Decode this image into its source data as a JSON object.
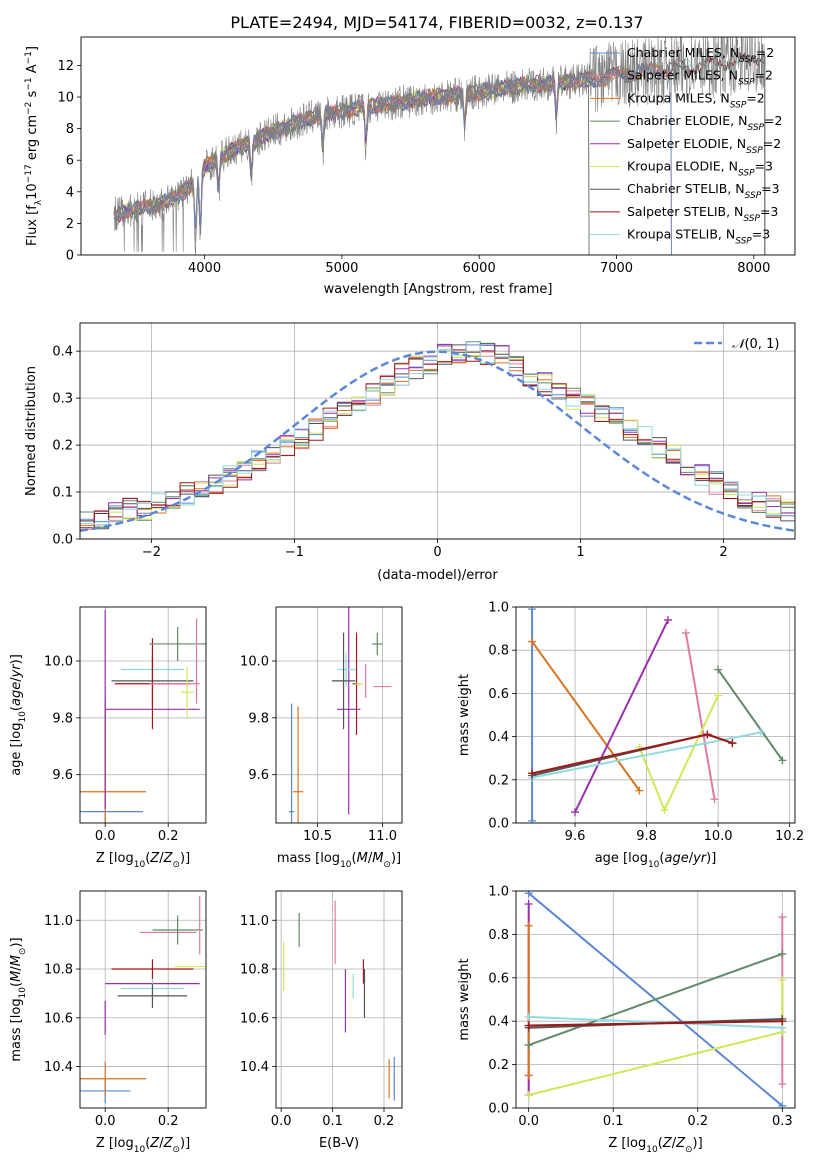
{
  "figure": {
    "title": "PLATE=2494, MJD=54174, FIBERID=0032, z=0.137"
  },
  "colors": {
    "Chabrier MILES": "#5b87d6",
    "Salpeter MILES": "#e07a9f",
    "Kroupa MILES": "#d9731e",
    "Chabrier ELODIE": "#5f8a65",
    "Salpeter ELODIE": "#9b2fae",
    "Kroupa ELODIE": "#cfe85a",
    "Chabrier STELIB": "#555555",
    "Salpeter STELIB": "#a01717",
    "Kroupa STELIB": "#8fdbe0",
    "data": "#808080",
    "normal": "#5b87d6"
  },
  "chart_data": [
    {
      "id": "spectrum",
      "type": "line",
      "xlabel": "wavelength [Angstrom, rest frame]",
      "ylabel": "Flux [f_λ 10^-17 erg cm^-2 s^-1 A^-1]",
      "xlim": [
        3100,
        8300
      ],
      "ylim": [
        0,
        13.8
      ],
      "xticks": [
        4000,
        5000,
        6000,
        7000,
        8000
      ],
      "yticks": [
        0,
        2,
        4,
        6,
        8,
        10,
        12
      ],
      "legend_position": "upper-right",
      "legend": [
        {
          "name": "Chabrier MILES",
          "nssp": "2"
        },
        {
          "name": "Salpeter MILES",
          "nssp": "2"
        },
        {
          "name": "Kroupa MILES",
          "nssp": "2"
        },
        {
          "name": "Chabrier ELODIE",
          "nssp": "2"
        },
        {
          "name": "Salpeter ELODIE",
          "nssp": "2"
        },
        {
          "name": "Kroupa ELODIE",
          "nssp": "3"
        },
        {
          "name": "Chabrier STELIB",
          "nssp": "3"
        },
        {
          "name": "Salpeter STELIB",
          "nssp": "3"
        },
        {
          "name": "Kroupa STELIB",
          "nssp": "3"
        }
      ],
      "continuum": {
        "x": [
          3340,
          3500,
          3700,
          3800,
          3950,
          4000,
          4200,
          4500,
          4800,
          5200,
          5600,
          5900,
          6300,
          6700,
          7100,
          7500,
          7900,
          8080
        ],
        "y": [
          2.6,
          2.9,
          3.3,
          3.7,
          4.8,
          5.6,
          6.6,
          7.8,
          8.8,
          9.4,
          9.9,
          10.2,
          10.7,
          11.0,
          11.5,
          11.9,
          12.3,
          12.6
        ]
      },
      "spectrum_range": [
        3340,
        8080
      ],
      "model_ranges": {
        "Chabrier MILES": [
          3340,
          7400
        ],
        "Salpeter MILES": [
          3340,
          7400
        ],
        "Kroupa MILES": [
          3340,
          7400
        ],
        "Chabrier ELODIE": [
          3340,
          6800
        ],
        "Salpeter ELODIE": [
          3340,
          6800
        ],
        "Kroupa ELODIE": [
          3340,
          6800
        ],
        "Chabrier STELIB": [
          3340,
          8080
        ],
        "Salpeter STELIB": [
          3340,
          8080
        ],
        "Kroupa STELIB": [
          3340,
          8080
        ]
      },
      "absorption_lines": [
        3934,
        3969,
        4102,
        4340,
        4861,
        5175,
        5894,
        6563
      ],
      "note_tick_labels": [
        "4000",
        "5000",
        "6000",
        "7000",
        "8000"
      ]
    },
    {
      "id": "residuals",
      "type": "histogram",
      "xlabel": "(data-model)/error",
      "ylabel": "Normed distribution",
      "xlim": [
        -2.5,
        2.5
      ],
      "ylim": [
        0,
        0.46
      ],
      "xticks": [
        -2,
        -1,
        0,
        1,
        2
      ],
      "xtick_labels": [
        "−2",
        "−1",
        "0",
        "1",
        "2"
      ],
      "yticks": [
        0.0,
        0.1,
        0.2,
        0.3,
        0.4
      ],
      "ytick_labels": [
        "0.0",
        "0.1",
        "0.2",
        "0.3",
        "0.4"
      ],
      "bin_edges_start": -2.5,
      "bin_width": 0.1,
      "base_values": [
        0.04,
        0.045,
        0.055,
        0.065,
        0.065,
        0.075,
        0.085,
        0.095,
        0.105,
        0.12,
        0.135,
        0.15,
        0.165,
        0.18,
        0.2,
        0.215,
        0.235,
        0.255,
        0.275,
        0.295,
        0.31,
        0.33,
        0.35,
        0.365,
        0.375,
        0.39,
        0.395,
        0.4,
        0.395,
        0.39,
        0.37,
        0.35,
        0.33,
        0.315,
        0.3,
        0.285,
        0.27,
        0.255,
        0.235,
        0.215,
        0.195,
        0.175,
        0.155,
        0.135,
        0.12,
        0.105,
        0.09,
        0.08,
        0.07,
        0.06
      ],
      "legend": [
        {
          "name": "N(0,1)",
          "style": "dashed"
        }
      ],
      "legend_position": "upper-right"
    },
    {
      "id": "z_age",
      "type": "errorbar",
      "xlabel": "Z [log10(Z/Z⊙)]",
      "ylabel": "age [log10(age/yr)]",
      "xlim": [
        -0.08,
        0.32
      ],
      "ylim": [
        9.43,
        10.19
      ],
      "xticks": [
        0.0,
        0.2
      ],
      "xtick_labels": [
        "0.0",
        "0.2"
      ],
      "yticks": [
        9.6,
        9.8,
        10.0
      ],
      "yticks_labels": [
        "9.6",
        "9.8",
        "10.0"
      ],
      "points": [
        {
          "model": "Chabrier MILES",
          "x": 0.0,
          "xerr": 0.12,
          "y": 9.47,
          "yerr": 0.4
        },
        {
          "model": "Kroupa MILES",
          "x": 0.0,
          "xerr": 0.13,
          "y": 9.54,
          "yerr": 0.3
        },
        {
          "model": "Salpeter ELODIE",
          "x": 0.0,
          "xerr": 0.0,
          "y": 9.83,
          "yerr": 0.35
        },
        {
          "model": "Salpeter ELODIE",
          "x": 0.15,
          "xerr": 0.15,
          "y": 9.83,
          "yerr": 0.0
        },
        {
          "model": "Kroupa STELIB",
          "x": 0.15,
          "xerr": 0.1,
          "y": 9.97,
          "yerr": 0.04
        },
        {
          "model": "Chabrier STELIB",
          "x": 0.15,
          "xerr": 0.13,
          "y": 9.93,
          "yerr": 0.09
        },
        {
          "model": "Salpeter STELIB",
          "x": 0.15,
          "xerr": 0.12,
          "y": 9.92,
          "yerr": 0.16
        },
        {
          "model": "Salpeter MILES",
          "x": 0.22,
          "xerr": 0.08,
          "y": 9.92,
          "yerr": 0.0
        },
        {
          "model": "Kroupa ELODIE",
          "x": 0.26,
          "xerr": 0.02,
          "y": 9.89,
          "yerr": 0.09
        },
        {
          "model": "Chabrier ELODIE",
          "x": 0.23,
          "xerr": 0.09,
          "y": 10.06,
          "yerr": 0.06
        },
        {
          "model": "Salpeter MILES",
          "x": 0.29,
          "xerr": 0.0,
          "y": 10.0,
          "yerr": 0.15
        }
      ]
    },
    {
      "id": "mass_age",
      "type": "errorbar",
      "xlabel": "mass [log10(M/M⊙)]",
      "ylabel": "",
      "xlim": [
        10.18,
        11.15
      ],
      "ylim": [
        9.43,
        10.19
      ],
      "xticks": [
        10.5,
        11.0
      ],
      "xtick_labels": [
        "10.5",
        "11.0"
      ],
      "yticks": [
        9.6,
        9.8,
        10.0
      ],
      "ytick_labels": [
        "9.6",
        "9.8",
        "10.0"
      ],
      "points": [
        {
          "model": "Chabrier MILES",
          "x": 10.3,
          "xerr": 0.02,
          "y": 9.47,
          "yerr": 0.38
        },
        {
          "model": "Kroupa MILES",
          "x": 10.35,
          "xerr": 0.04,
          "y": 9.54,
          "yerr": 0.3
        },
        {
          "model": "Salpeter ELODIE",
          "x": 10.74,
          "xerr": 0.09,
          "y": 9.83,
          "yerr": 0.37
        },
        {
          "model": "Kroupa STELIB",
          "x": 10.72,
          "xerr": 0.07,
          "y": 9.97,
          "yerr": 0.06
        },
        {
          "model": "Chabrier STELIB",
          "x": 10.7,
          "xerr": 0.09,
          "y": 9.93,
          "yerr": 0.17
        },
        {
          "model": "Salpeter STELIB",
          "x": 10.8,
          "xerr": 0.03,
          "y": 9.92,
          "yerr": 0.18
        },
        {
          "model": "Kroupa ELODIE",
          "x": 10.82,
          "xerr": 0.03,
          "y": 9.92,
          "yerr": 0.0
        },
        {
          "model": "Chabrier ELODIE",
          "x": 10.96,
          "xerr": 0.04,
          "y": 10.06,
          "yerr": 0.04
        },
        {
          "model": "Salpeter MILES",
          "x": 11.0,
          "xerr": 0.07,
          "y": 9.91,
          "yerr": 0.0
        },
        {
          "model": "Salpeter MILES",
          "x": 10.87,
          "xerr": 0.0,
          "y": 9.93,
          "yerr": 0.06
        }
      ]
    },
    {
      "id": "age_weight",
      "type": "line",
      "xlabel": "age [log10(age/yr)]",
      "ylabel": "mass weight",
      "xlim": [
        9.435,
        10.215
      ],
      "ylim": [
        0,
        1.0
      ],
      "xticks": [
        9.6,
        9.8,
        10.0,
        10.2
      ],
      "xtick_labels": [
        "9.6",
        "9.8",
        "10.0",
        "10.2"
      ],
      "yticks": [
        0.0,
        0.2,
        0.4,
        0.6,
        0.8,
        1.0
      ],
      "ytick_labels": [
        "0.0",
        "0.2",
        "0.4",
        "0.6",
        "0.8",
        "1.0"
      ],
      "series": [
        {
          "model": "Chabrier MILES",
          "x": [
            9.48,
            9.48
          ],
          "y": [
            0.01,
            0.99
          ]
        },
        {
          "model": "Kroupa MILES",
          "x": [
            9.48,
            9.78
          ],
          "y": [
            0.84,
            0.15
          ]
        },
        {
          "model": "Salpeter ELODIE",
          "x": [
            9.6,
            9.86
          ],
          "y": [
            0.05,
            0.94
          ]
        },
        {
          "model": "Salpeter MILES",
          "x": [
            9.91,
            9.99
          ],
          "y": [
            0.88,
            0.11
          ]
        },
        {
          "model": "Kroupa ELODIE",
          "x": [
            9.78,
            9.85,
            10.0
          ],
          "y": [
            0.35,
            0.06,
            0.59
          ]
        },
        {
          "model": "Chabrier ELODIE",
          "x": [
            10.0,
            10.18
          ],
          "y": [
            0.71,
            0.29
          ]
        },
        {
          "model": "Kroupa STELIB",
          "x": [
            9.48,
            10.12
          ],
          "y": [
            0.21,
            0.42
          ]
        },
        {
          "model": "Chabrier STELIB",
          "x": [
            9.48,
            9.97,
            10.04
          ],
          "y": [
            0.22,
            0.41,
            0.37
          ]
        },
        {
          "model": "Salpeter STELIB",
          "x": [
            9.48,
            9.97,
            10.04
          ],
          "y": [
            0.23,
            0.41,
            0.37
          ]
        }
      ]
    },
    {
      "id": "z_mass",
      "type": "errorbar",
      "xlabel": "Z [log10(Z/Z⊙)]",
      "ylabel": "mass [log10(M/M⊙)]",
      "xlim": [
        -0.08,
        0.32
      ],
      "ylim": [
        10.23,
        11.12
      ],
      "xticks": [
        0.0,
        0.2
      ],
      "xtick_labels": [
        "0.0",
        "0.2"
      ],
      "yticks": [
        10.4,
        10.6,
        10.8,
        11.0
      ],
      "ytick_labels": [
        "10.4",
        "10.6",
        "10.8",
        "11.0"
      ],
      "points": [
        {
          "model": "Chabrier MILES",
          "x": 0.0,
          "xerr": 0.08,
          "y": 10.3,
          "yerr": 0.05
        },
        {
          "model": "Kroupa MILES",
          "x": 0.0,
          "xerr": 0.13,
          "y": 10.35,
          "yerr": 0.07
        },
        {
          "model": "Salpeter ELODIE",
          "x": 0.0,
          "xerr": 0.0,
          "y": 10.6,
          "yerr": 0.07
        },
        {
          "model": "Salpeter ELODIE",
          "x": 0.15,
          "xerr": 0.15,
          "y": 10.74,
          "yerr": 0.0
        },
        {
          "model": "Kroupa STELIB",
          "x": 0.15,
          "xerr": 0.1,
          "y": 10.72,
          "yerr": 0.04
        },
        {
          "model": "Chabrier STELIB",
          "x": 0.15,
          "xerr": 0.11,
          "y": 10.69,
          "yerr": 0.05
        },
        {
          "model": "Salpeter STELIB",
          "x": 0.15,
          "xerr": 0.13,
          "y": 10.8,
          "yerr": 0.04
        },
        {
          "model": "Kroupa ELODIE",
          "x": 0.27,
          "xerr": 0.05,
          "y": 10.81,
          "yerr": 0.0
        },
        {
          "model": "Salpeter MILES",
          "x": 0.2,
          "xerr": 0.09,
          "y": 10.95,
          "yerr": 0.0
        },
        {
          "model": "Chabrier ELODIE",
          "x": 0.23,
          "xerr": 0.08,
          "y": 10.96,
          "yerr": 0.06
        },
        {
          "model": "Salpeter MILES",
          "x": 0.3,
          "xerr": 0.0,
          "y": 10.98,
          "yerr": 0.12
        }
      ]
    },
    {
      "id": "ebv_mass",
      "type": "errorbar",
      "xlabel": "E(B-V)",
      "ylabel": "",
      "xlim": [
        -0.01,
        0.235
      ],
      "ylim": [
        10.23,
        11.12
      ],
      "xticks": [
        0.0,
        0.1,
        0.2
      ],
      "xtick_labels": [
        "0.0",
        "0.1",
        "0.2"
      ],
      "yticks": [
        10.4,
        10.6,
        10.8,
        11.0
      ],
      "ytick_labels": [
        "10.4",
        "10.6",
        "10.8",
        "11.0"
      ],
      "points": [
        {
          "model": "Kroupa ELODIE",
          "x": 0.005,
          "xerr": 0.0,
          "y": 10.81,
          "yerr": 0.1
        },
        {
          "model": "Chabrier ELODIE",
          "x": 0.035,
          "xerr": 0.0,
          "y": 10.96,
          "yerr": 0.07
        },
        {
          "model": "Salpeter MILES",
          "x": 0.105,
          "xerr": 0.0,
          "y": 10.95,
          "yerr": 0.13
        },
        {
          "model": "Salpeter ELODIE",
          "x": 0.125,
          "xerr": 0.0,
          "y": 10.67,
          "yerr": 0.13
        },
        {
          "model": "Kroupa STELIB",
          "x": 0.14,
          "xerr": 0.0,
          "y": 10.73,
          "yerr": 0.05
        },
        {
          "model": "Salpeter STELIB",
          "x": 0.16,
          "xerr": 0.0,
          "y": 10.79,
          "yerr": 0.05
        },
        {
          "model": "Chabrier STELIB",
          "x": 0.162,
          "xerr": 0.0,
          "y": 10.7,
          "yerr": 0.1
        },
        {
          "model": "Kroupa MILES",
          "x": 0.21,
          "xerr": 0.0,
          "y": 10.35,
          "yerr": 0.08
        },
        {
          "model": "Chabrier MILES",
          "x": 0.22,
          "xerr": 0.0,
          "y": 10.35,
          "yerr": 0.09
        }
      ]
    },
    {
      "id": "z_weight",
      "type": "line",
      "xlabel": "Z [log10(Z/Z⊙)]",
      "ylabel": "mass weight",
      "xlim": [
        -0.015,
        0.315
      ],
      "ylim": [
        0,
        1.0
      ],
      "xticks": [
        0.0,
        0.1,
        0.2,
        0.3
      ],
      "xtick_labels": [
        "0.0",
        "0.1",
        "0.2",
        "0.3"
      ],
      "yticks": [
        0.0,
        0.2,
        0.4,
        0.6,
        0.8,
        1.0
      ],
      "ytick_labels": [
        "0.0",
        "0.2",
        "0.4",
        "0.6",
        "0.8",
        "1.0"
      ],
      "series": [
        {
          "model": "Chabrier MILES",
          "x": [
            0.0,
            0.3
          ],
          "y": [
            0.99,
            0.01
          ]
        },
        {
          "model": "Salpeter ELODIE",
          "x": [
            0.0,
            0.0
          ],
          "y": [
            0.06,
            0.94
          ]
        },
        {
          "model": "Kroupa MILES",
          "x": [
            0.0,
            0.0
          ],
          "y": [
            0.15,
            0.84
          ]
        },
        {
          "model": "Salpeter MILES",
          "x": [
            0.3,
            0.3
          ],
          "y": [
            0.11,
            0.88
          ]
        },
        {
          "model": "Chabrier ELODIE",
          "x": [
            0.0,
            0.3
          ],
          "y": [
            0.29,
            0.71
          ]
        },
        {
          "model": "Kroupa ELODIE",
          "x": [
            0.0,
            0.3,
            0.3
          ],
          "y": [
            0.06,
            0.35,
            0.59
          ]
        },
        {
          "model": "Kroupa STELIB",
          "x": [
            0.0,
            0.3
          ],
          "y": [
            0.42,
            0.37
          ]
        },
        {
          "model": "Chabrier STELIB",
          "x": [
            0.0,
            0.3
          ],
          "y": [
            0.37,
            0.41
          ]
        },
        {
          "model": "Salpeter STELIB",
          "x": [
            0.0,
            0.3
          ],
          "y": [
            0.38,
            0.4
          ]
        }
      ]
    }
  ]
}
